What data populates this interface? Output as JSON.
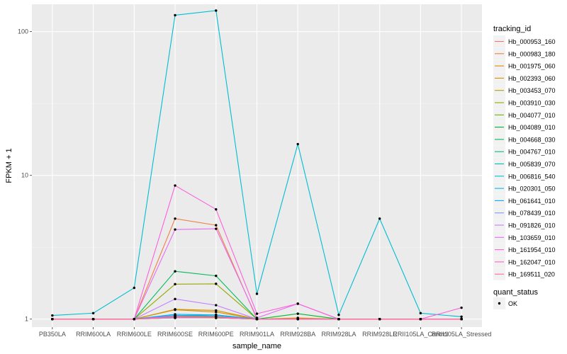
{
  "chart_data": {
    "type": "line",
    "y_scale": "log10",
    "ylim": [
      0.88,
      155
    ],
    "xlabel": "sample_name",
    "ylabel": "FPKM + 1",
    "categories": [
      "PB350LA",
      "RRIM600LA",
      "RRIM600LE",
      "RRIM600SE",
      "RRIM600PE",
      "RRIM901LA",
      "RRIM928BA",
      "RRIM928LA",
      "RRIM928LE",
      "RRII105LA_Control",
      "RRII105LA_Stressed"
    ],
    "y_ticks": [
      {
        "value": 1,
        "label": "1"
      },
      {
        "value": 10,
        "label": "10"
      },
      {
        "value": 100,
        "label": "100"
      }
    ],
    "legend_title": "tracking_id",
    "shape_legend_title": "quant_status",
    "shape_legend_label": "OK",
    "series": [
      {
        "name": "Hb_000953_160",
        "color": "#F8766D",
        "values": [
          1,
          1,
          1,
          1.02,
          1.02,
          1,
          1,
          1,
          1,
          1,
          1
        ]
      },
      {
        "name": "Hb_000983_180",
        "color": "#EE8043",
        "values": [
          1,
          1,
          1,
          5.0,
          4.5,
          1,
          1.02,
          1,
          1,
          1,
          1
        ]
      },
      {
        "name": "Hb_001975_060",
        "color": "#E08B00",
        "values": [
          1,
          1,
          1,
          1.17,
          1.15,
          1,
          1.01,
          1,
          1,
          1,
          1
        ]
      },
      {
        "name": "Hb_002393_060",
        "color": "#CC9600",
        "values": [
          1,
          1,
          1,
          1.16,
          1.12,
          1,
          1,
          1,
          1,
          1,
          1
        ]
      },
      {
        "name": "Hb_003453_070",
        "color": "#B59F00",
        "values": [
          1,
          1,
          1,
          1.04,
          1.03,
          1,
          1,
          1,
          1,
          1,
          1
        ]
      },
      {
        "name": "Hb_003910_030",
        "color": "#97A800",
        "values": [
          1,
          1,
          1,
          1.75,
          1.76,
          1,
          1,
          1,
          1,
          1,
          1
        ]
      },
      {
        "name": "Hb_004077_010",
        "color": "#70B000",
        "values": [
          1,
          1,
          1,
          1.03,
          1.02,
          1,
          1,
          1,
          1,
          1,
          1
        ]
      },
      {
        "name": "Hb_004089_010",
        "color": "#00B730",
        "values": [
          1,
          1,
          1,
          1.05,
          1.04,
          1,
          1.09,
          1,
          1,
          1,
          1
        ]
      },
      {
        "name": "Hb_004668_030",
        "color": "#00BB59",
        "values": [
          1,
          1,
          1,
          2.15,
          2.0,
          1,
          1,
          1,
          1,
          1,
          1
        ]
      },
      {
        "name": "Hb_004767_010",
        "color": "#00BF7D",
        "values": [
          1,
          1,
          1,
          1.02,
          1.02,
          1,
          1,
          1,
          1,
          1,
          1
        ]
      },
      {
        "name": "Hb_005839_070",
        "color": "#00C09E",
        "values": [
          1,
          1,
          1,
          1.06,
          1.05,
          1,
          1,
          1,
          1,
          1,
          1
        ]
      },
      {
        "name": "Hb_006816_540",
        "color": "#00BDD0",
        "values": [
          1.06,
          1.1,
          1.65,
          130,
          140,
          1.5,
          16.5,
          1.07,
          5.0,
          1.1,
          1.04
        ]
      },
      {
        "name": "Hb_020301_050",
        "color": "#00B6EB",
        "values": [
          1,
          1,
          1,
          1.06,
          1.07,
          1,
          1,
          1,
          1,
          1,
          1
        ]
      },
      {
        "name": "Hb_061641_010",
        "color": "#00A9FF",
        "values": [
          1,
          1,
          1,
          1.08,
          1.07,
          1,
          1,
          1,
          1,
          1,
          1
        ]
      },
      {
        "name": "Hb_078439_010",
        "color": "#8B93FF",
        "values": [
          1,
          1,
          1,
          1.03,
          1.02,
          1,
          1,
          1,
          1,
          1,
          1
        ]
      },
      {
        "name": "Hb_091826_010",
        "color": "#C27CFF",
        "values": [
          1,
          1,
          1,
          1.38,
          1.25,
          1,
          1,
          1,
          1,
          1,
          1
        ]
      },
      {
        "name": "Hb_103659_010",
        "color": "#E76BF3",
        "values": [
          1,
          1,
          1,
          4.2,
          4.25,
          1.02,
          1.28,
          1,
          1,
          1,
          1
        ]
      },
      {
        "name": "Hb_161954_010",
        "color": "#FA62DB",
        "values": [
          1,
          1,
          1,
          8.5,
          5.8,
          1.09,
          1.28,
          1,
          1,
          1,
          1.2
        ]
      },
      {
        "name": "Hb_162047_010",
        "color": "#FF62BC",
        "values": [
          1,
          1,
          1,
          1.05,
          1.04,
          1,
          1,
          1,
          1,
          1,
          1
        ]
      },
      {
        "name": "Hb_169511_020",
        "color": "#FF6C91",
        "values": [
          1,
          1,
          1,
          1.02,
          1.02,
          1,
          1,
          1,
          1,
          1,
          1
        ]
      }
    ]
  }
}
